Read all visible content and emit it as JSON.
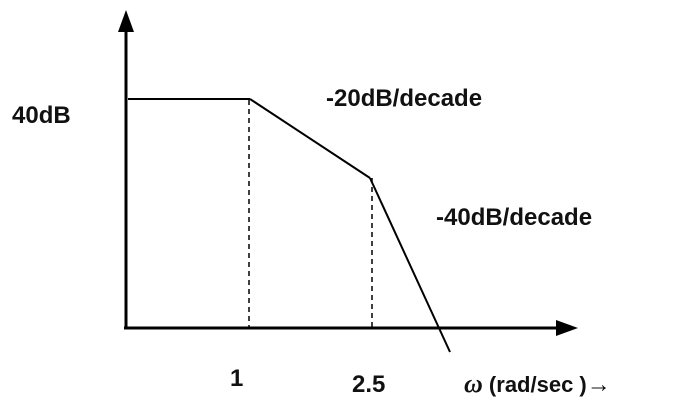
{
  "chart_data": {
    "type": "line",
    "title": "",
    "y_tick_label": "40dB",
    "x_tick_labels": [
      "1",
      "2.5"
    ],
    "x_axis_label": {
      "symbol": "ω",
      "text": " (rad/sec )",
      "arrow": "→"
    },
    "breakpoints": [
      {
        "omega": 1,
        "label": "1"
      },
      {
        "omega": 2.5,
        "label": "2.5"
      }
    ],
    "segments": [
      {
        "slope_label": "",
        "slope_db_per_decade": 0
      },
      {
        "slope_label": "-20dB/decade",
        "slope_db_per_decade": -20
      },
      {
        "slope_label": "-40dB/decade",
        "slope_db_per_decade": -40
      }
    ],
    "y_value_db": 40,
    "grid": false
  }
}
